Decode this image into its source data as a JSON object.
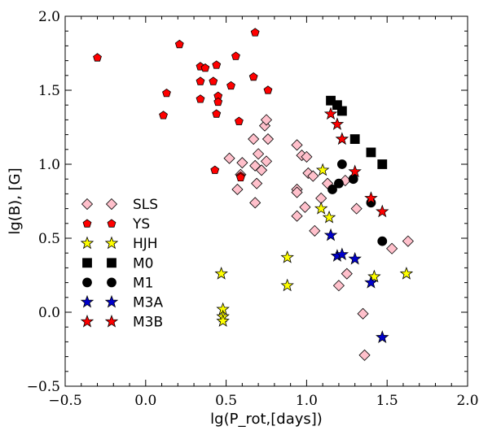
{
  "chart_data": {
    "type": "scatter",
    "xlabel": "lg(P_rot,[days])",
    "ylabel": "lg(B), [G]",
    "xlim": [
      -0.5,
      2.0
    ],
    "ylim": [
      -0.5,
      2.0
    ],
    "xticks": [
      -0.5,
      0.0,
      0.5,
      1.0,
      1.5,
      2.0
    ],
    "yticks": [
      -0.5,
      0.0,
      0.5,
      1.0,
      1.5,
      2.0
    ],
    "xtick_labels": [
      "−0.5",
      "0.0",
      "0.5",
      "1.0",
      "1.5",
      "2.0"
    ],
    "ytick_labels": [
      "−0.5",
      "0.0",
      "0.5",
      "1.0",
      "1.5",
      "2.0"
    ],
    "grid": false,
    "legend_position": "left",
    "series": [
      {
        "name": "SLS",
        "marker": "diamond",
        "color": "#ffc0cb",
        "points": [
          [
            0.52,
            1.04
          ],
          [
            0.67,
            1.17
          ],
          [
            0.74,
            1.26
          ],
          [
            0.75,
            1.3
          ],
          [
            0.7,
            1.07
          ],
          [
            0.68,
            0.99
          ],
          [
            0.72,
            0.96
          ],
          [
            0.75,
            1.02
          ],
          [
            0.76,
            1.17
          ],
          [
            0.6,
            1.01
          ],
          [
            0.59,
            0.93
          ],
          [
            0.57,
            0.83
          ],
          [
            0.69,
            0.87
          ],
          [
            0.68,
            0.74
          ],
          [
            0.94,
            1.13
          ],
          [
            0.97,
            1.06
          ],
          [
            1.0,
            1.05
          ],
          [
            1.01,
            0.94
          ],
          [
            1.04,
            0.92
          ],
          [
            0.94,
            0.83
          ],
          [
            0.94,
            0.81
          ],
          [
            0.94,
            0.65
          ],
          [
            0.99,
            0.71
          ],
          [
            1.05,
            0.55
          ],
          [
            1.09,
            0.77
          ],
          [
            1.13,
            0.87
          ],
          [
            1.24,
            0.89
          ],
          [
            1.31,
            0.7
          ],
          [
            1.2,
            0.18
          ],
          [
            1.25,
            0.26
          ],
          [
            1.35,
            -0.01
          ],
          [
            1.36,
            -0.29
          ],
          [
            1.53,
            0.43
          ],
          [
            1.63,
            0.48
          ]
        ]
      },
      {
        "name": "YS",
        "marker": "pentagon",
        "color": "#ff0000",
        "points": [
          [
            -0.3,
            1.72
          ],
          [
            0.13,
            1.48
          ],
          [
            0.11,
            1.33
          ],
          [
            0.21,
            1.81
          ],
          [
            0.34,
            1.66
          ],
          [
            0.37,
            1.65
          ],
          [
            0.34,
            1.56
          ],
          [
            0.34,
            1.44
          ],
          [
            0.42,
            1.56
          ],
          [
            0.44,
            1.67
          ],
          [
            0.45,
            1.46
          ],
          [
            0.45,
            1.42
          ],
          [
            0.44,
            1.34
          ],
          [
            0.53,
            1.53
          ],
          [
            0.56,
            1.73
          ],
          [
            0.68,
            1.89
          ],
          [
            0.67,
            1.59
          ],
          [
            0.76,
            1.5
          ],
          [
            0.58,
            1.29
          ],
          [
            0.59,
            0.92
          ],
          [
            0.59,
            0.91
          ],
          [
            0.43,
            0.96
          ]
        ]
      },
      {
        "name": "HJH",
        "marker": "star",
        "color": "#ffff00",
        "points": [
          [
            1.1,
            0.96
          ],
          [
            1.09,
            0.7
          ],
          [
            1.14,
            0.64
          ],
          [
            0.88,
            0.37
          ],
          [
            0.88,
            0.18
          ],
          [
            0.47,
            0.26
          ],
          [
            0.48,
            0.02
          ],
          [
            0.48,
            -0.03
          ],
          [
            0.48,
            -0.06
          ],
          [
            1.42,
            0.24
          ],
          [
            1.62,
            0.26
          ]
        ]
      },
      {
        "name": "M0",
        "marker": "square",
        "color": "#000000",
        "points": [
          [
            1.15,
            1.43
          ],
          [
            1.19,
            1.4
          ],
          [
            1.22,
            1.36
          ],
          [
            1.3,
            1.17
          ],
          [
            1.4,
            1.08
          ],
          [
            1.47,
            1.0
          ]
        ]
      },
      {
        "name": "M1",
        "marker": "circle",
        "color": "#000000",
        "points": [
          [
            1.22,
            1.0
          ],
          [
            1.29,
            0.9
          ],
          [
            1.2,
            0.87
          ],
          [
            1.16,
            0.83
          ],
          [
            1.4,
            0.74
          ],
          [
            1.47,
            0.48
          ]
        ]
      },
      {
        "name": "M3A",
        "marker": "star",
        "color": "#0000cc",
        "points": [
          [
            1.15,
            0.52
          ],
          [
            1.19,
            0.38
          ],
          [
            1.22,
            0.39
          ],
          [
            1.3,
            0.36
          ],
          [
            1.4,
            0.2
          ],
          [
            1.47,
            -0.17
          ]
        ]
      },
      {
        "name": "M3B",
        "marker": "star",
        "color": "#ff0000",
        "points": [
          [
            1.15,
            1.34
          ],
          [
            1.19,
            1.27
          ],
          [
            1.22,
            1.17
          ],
          [
            1.3,
            0.95
          ],
          [
            1.4,
            0.77
          ],
          [
            1.47,
            0.68
          ]
        ]
      }
    ]
  }
}
